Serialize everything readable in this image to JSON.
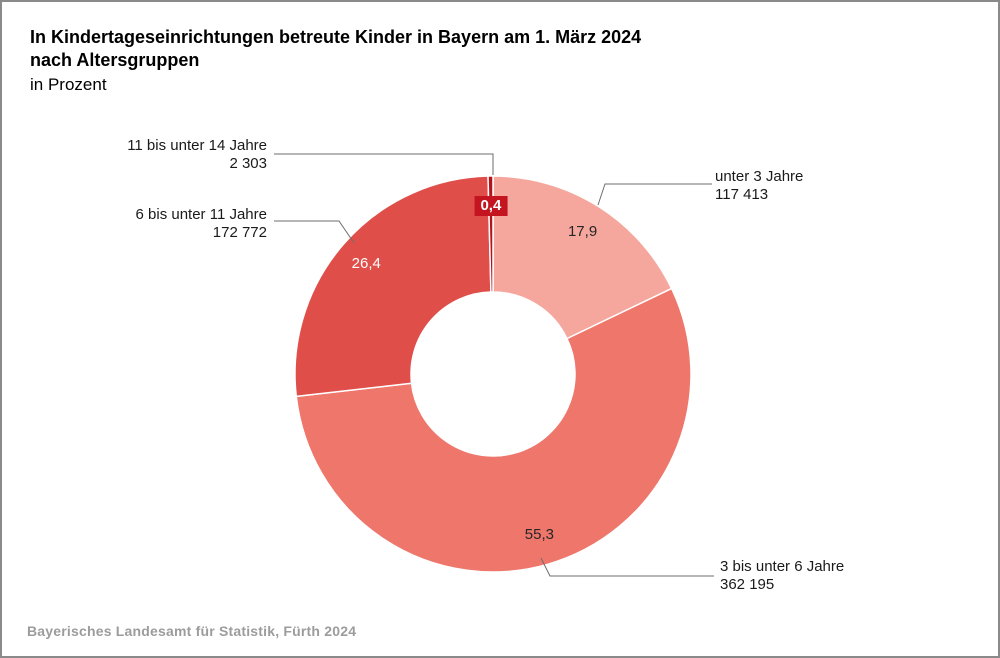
{
  "header": {
    "title_line1": "In Kindertageseinrichtungen betreute Kinder in Bayern am 1. März 2024",
    "title_line2": "nach Altersgruppen",
    "subtitle": "in Prozent"
  },
  "footer": {
    "source": "Bayerisches Landesamt für Statistik, Fürth 2024"
  },
  "chart_data": {
    "type": "pie",
    "variant": "donut",
    "title": "In Kindertageseinrichtungen betreute Kinder in Bayern am 1. März 2024 nach Altersgruppen",
    "subtitle": "in Prozent",
    "source": "Bayerisches Landesamt für Statistik, Fürth 2024",
    "unit": "percent",
    "direction": "clockwise",
    "start_angle_deg": 0,
    "legend": false,
    "total_note": "labels show absolute counts of children",
    "segments": [
      {
        "label": "unter 3 Jahre",
        "count": "117 413",
        "percent": 17.9,
        "percent_label": "17,9",
        "color": "#f5a79e",
        "value_text_color": "#262626"
      },
      {
        "label": "3 bis unter 6 Jahre",
        "count": "362 195",
        "percent": 55.3,
        "percent_label": "55,3",
        "color": "#ee766b",
        "value_text_color": "#262626"
      },
      {
        "label": "6 bis unter 11 Jahre",
        "count": "172 772",
        "percent": 26.4,
        "percent_label": "26,4",
        "color": "#df4e49",
        "value_text_color": "#ffffff"
      },
      {
        "label": "11 bis unter 14 Jahre",
        "count": "2 303",
        "percent": 0.4,
        "percent_label": "0,4",
        "color": "#b5121b",
        "value_text_color": "#ffffff",
        "label_boxed": true,
        "box_color": "#c31420"
      }
    ]
  }
}
